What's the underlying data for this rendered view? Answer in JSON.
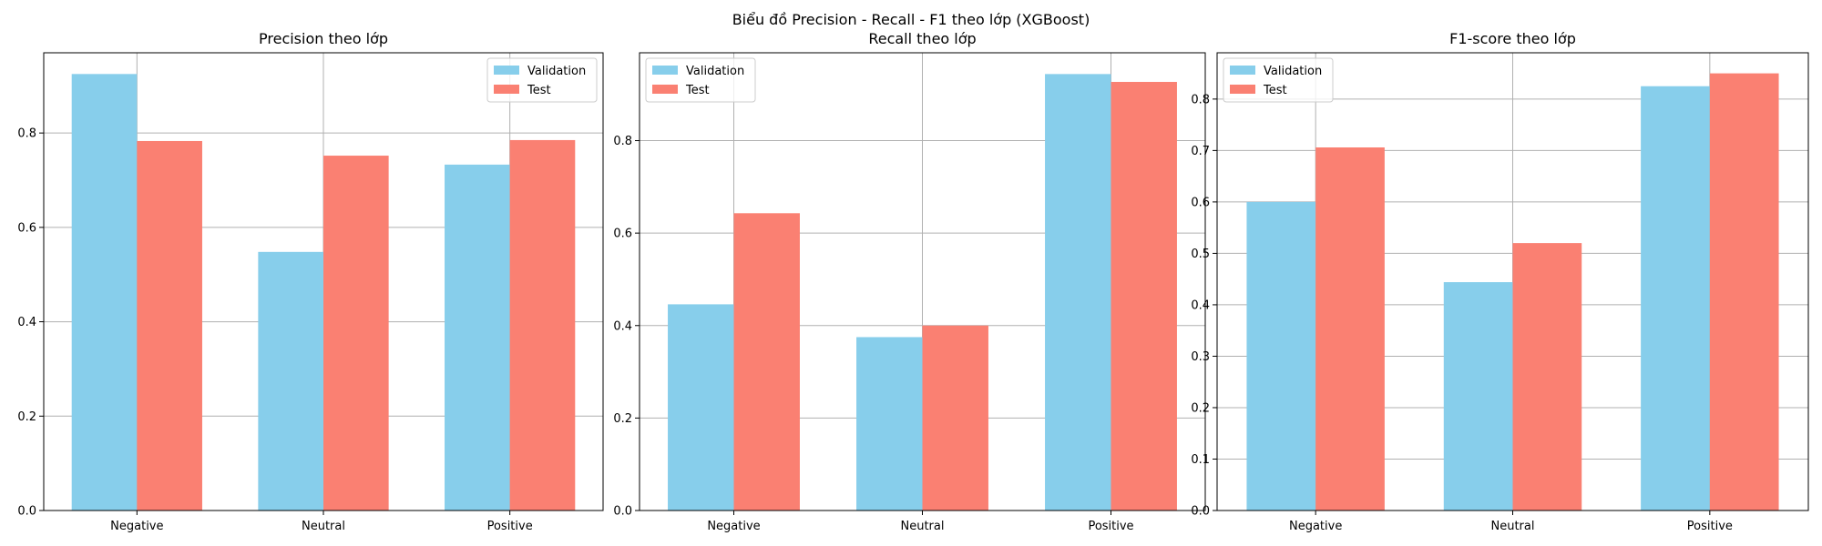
{
  "figure": {
    "suptitle": "Biểu đồ Precision - Recall - F1 theo lớp (XGBoost)"
  },
  "colors": {
    "validation": "#87CEEB",
    "test": "#FA8072",
    "grid": "#b0b0b0",
    "axis": "#000000"
  },
  "chart_data": [
    {
      "type": "bar",
      "title": "Precision theo lớp",
      "xlabel": "",
      "ylabel": "",
      "categories": [
        "Negative",
        "Neutral",
        "Positive"
      ],
      "series": [
        {
          "name": "Validation",
          "values": [
            0.925,
            0.548,
            0.733
          ]
        },
        {
          "name": "Test",
          "values": [
            0.783,
            0.752,
            0.785
          ]
        }
      ],
      "ylim": [
        0,
        0.97
      ],
      "yticks": [
        "0.0",
        "0.2",
        "0.4",
        "0.6",
        "0.8"
      ],
      "ytick_values": [
        0,
        0.2,
        0.4,
        0.6,
        0.8
      ],
      "grid": true,
      "legend": "upper right"
    },
    {
      "type": "bar",
      "title": "Recall theo lớp",
      "xlabel": "",
      "ylabel": "",
      "categories": [
        "Negative",
        "Neutral",
        "Positive"
      ],
      "series": [
        {
          "name": "Validation",
          "values": [
            0.446,
            0.375,
            0.944
          ]
        },
        {
          "name": "Test",
          "values": [
            0.643,
            0.4,
            0.927
          ]
        }
      ],
      "ylim": [
        0,
        0.99
      ],
      "yticks": [
        "0.0",
        "0.2",
        "0.4",
        "0.6",
        "0.8"
      ],
      "ytick_values": [
        0,
        0.2,
        0.4,
        0.6,
        0.8
      ],
      "grid": true,
      "legend": "upper left"
    },
    {
      "type": "bar",
      "title": "F1-score theo lớp",
      "xlabel": "",
      "ylabel": "",
      "categories": [
        "Negative",
        "Neutral",
        "Positive"
      ],
      "series": [
        {
          "name": "Validation",
          "values": [
            0.6,
            0.444,
            0.825
          ]
        },
        {
          "name": "Test",
          "values": [
            0.706,
            0.52,
            0.85
          ]
        }
      ],
      "ylim": [
        0,
        0.89
      ],
      "yticks": [
        "0.0",
        "0.1",
        "0.2",
        "0.3",
        "0.4",
        "0.5",
        "0.6",
        "0.7",
        "0.8"
      ],
      "ytick_values": [
        0,
        0.1,
        0.2,
        0.3,
        0.4,
        0.5,
        0.6,
        0.7,
        0.8
      ],
      "grid": true,
      "legend": "upper left"
    }
  ]
}
